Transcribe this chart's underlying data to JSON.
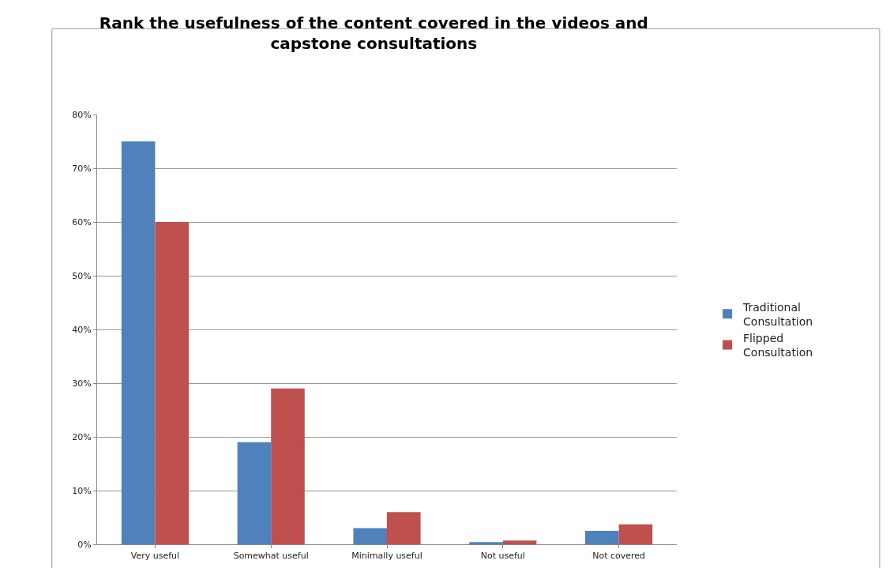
{
  "chart_data": {
    "type": "bar",
    "title": "Rank the usefulness of the content covered in the videos and capstone consultations",
    "categories": [
      "Very useful",
      "Somewhat useful",
      "Minimally useful",
      "Not useful",
      "Not covered"
    ],
    "series": [
      {
        "name": "Traditional Consultation",
        "color": "#4f81bd",
        "values": [
          75,
          19,
          3,
          0.4,
          2.5
        ]
      },
      {
        "name": "Flipped Consultation",
        "color": "#c0504d",
        "values": [
          60,
          29,
          6,
          0.7,
          3.7
        ]
      }
    ],
    "ylim": [
      0,
      80
    ],
    "yticks": [
      {
        "value": 0,
        "label": "0%"
      },
      {
        "value": 10,
        "label": "10%"
      },
      {
        "value": 20,
        "label": "20%"
      },
      {
        "value": 30,
        "label": "30%"
      },
      {
        "value": 40,
        "label": "40%"
      },
      {
        "value": 50,
        "label": "50%"
      },
      {
        "value": 60,
        "label": "60%"
      },
      {
        "value": 70,
        "label": "70%"
      },
      {
        "value": 80,
        "label": "80%"
      }
    ],
    "grid": "y",
    "legend": "right"
  }
}
